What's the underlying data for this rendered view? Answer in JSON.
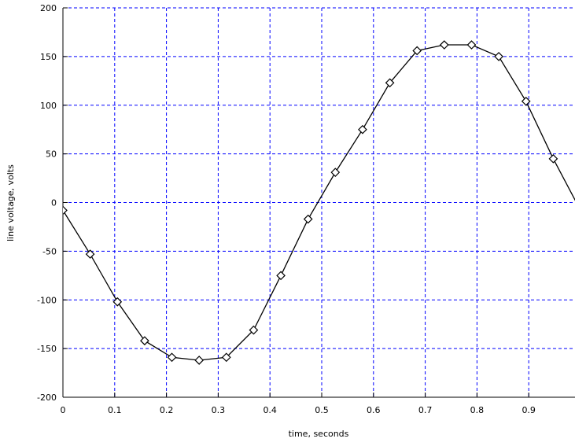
{
  "chart_data": {
    "type": "line",
    "xlabel": "time, seconds",
    "ylabel": "line voltage, volts",
    "x": [
      0,
      0.0526,
      0.1053,
      0.1579,
      0.2105,
      0.2632,
      0.3158,
      0.3684,
      0.4211,
      0.4737,
      0.5263,
      0.5789,
      0.6316,
      0.6842,
      0.7368,
      0.7895,
      0.8421,
      0.8947,
      0.9474,
      1.0
    ],
    "series": [
      {
        "name": "line voltage",
        "color": "#000000",
        "values": [
          -8,
          -53,
          -102,
          -142,
          -159,
          -162,
          -159,
          -131,
          -75,
          -17,
          31,
          75,
          123,
          156,
          162,
          162,
          150,
          104,
          45,
          -8
        ]
      }
    ],
    "xlim": [
      0,
      0.99
    ],
    "ylim": [
      -200,
      200
    ],
    "xticks": [
      0,
      0.1,
      0.2,
      0.3,
      0.4,
      0.5,
      0.6,
      0.7,
      0.8,
      0.9
    ],
    "yticks": [
      -200,
      -150,
      -100,
      -50,
      0,
      50,
      100,
      150,
      200
    ],
    "grid": true,
    "grid_color": "#0000ff",
    "marker": "diamond"
  }
}
